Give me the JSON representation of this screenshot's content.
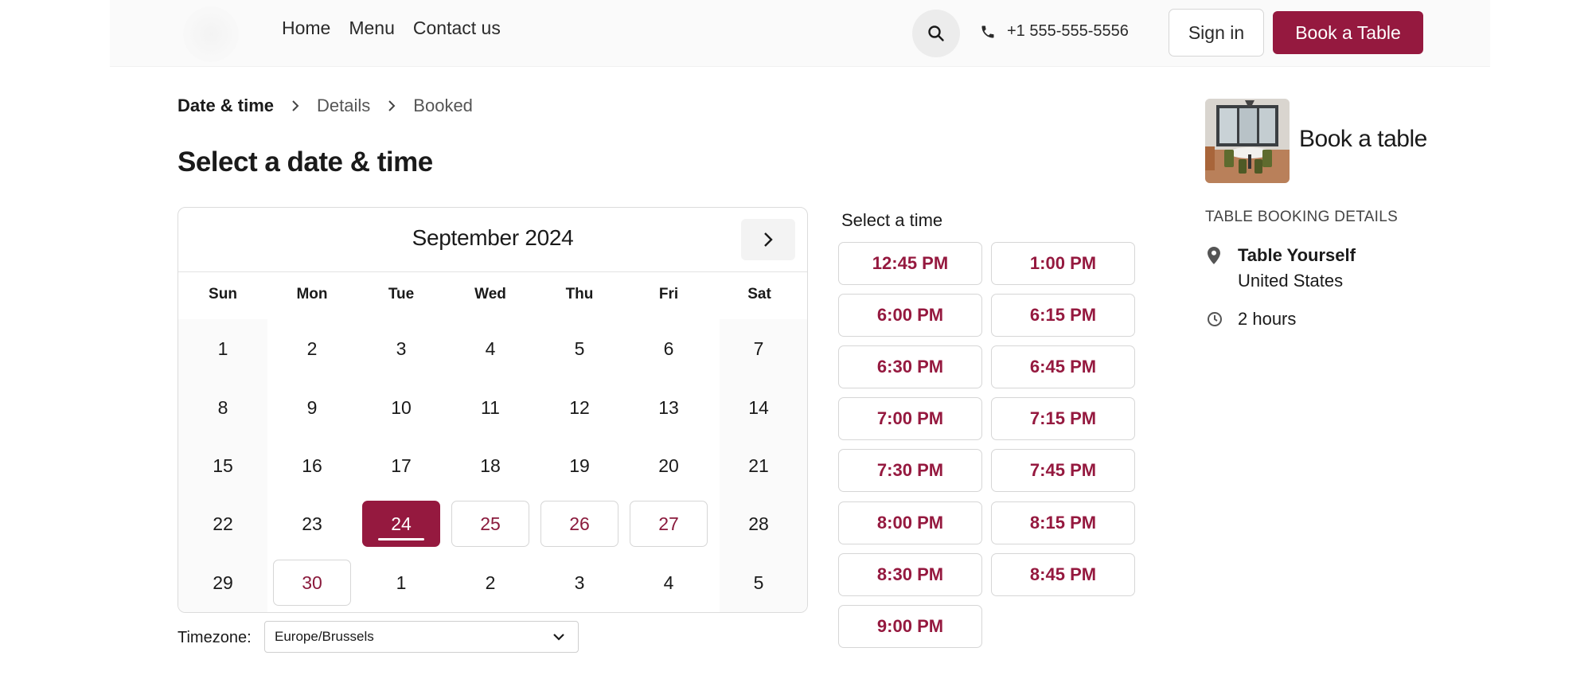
{
  "header": {
    "nav": [
      "Home",
      "Menu",
      "Contact us"
    ],
    "phone": "+1 555-555-5556",
    "sign_in": "Sign in",
    "book_table": "Book a Table"
  },
  "breadcrumb": [
    "Date & time",
    "Details",
    "Booked"
  ],
  "page_title": "Select a date & time",
  "calendar": {
    "month": "September 2024",
    "weekdays": [
      "Sun",
      "Mon",
      "Tue",
      "Wed",
      "Thu",
      "Fri",
      "Sat"
    ],
    "weeks": [
      [
        "1",
        "2",
        "3",
        "4",
        "5",
        "6",
        "7"
      ],
      [
        "8",
        "9",
        "10",
        "11",
        "12",
        "13",
        "14"
      ],
      [
        "15",
        "16",
        "17",
        "18",
        "19",
        "20",
        "21"
      ],
      [
        "22",
        "23",
        "24",
        "25",
        "26",
        "27",
        "28"
      ],
      [
        "29",
        "30",
        "1",
        "2",
        "3",
        "4",
        "5"
      ]
    ],
    "selected_day": "24",
    "available_days": [
      "25",
      "26",
      "27",
      "30"
    ]
  },
  "timezone": {
    "label": "Timezone:",
    "value": "Europe/Brussels"
  },
  "times": {
    "title": "Select a time",
    "slots": [
      "12:45 PM",
      "1:00 PM",
      "6:00 PM",
      "6:15 PM",
      "6:30 PM",
      "6:45 PM",
      "7:00 PM",
      "7:15 PM",
      "7:30 PM",
      "7:45 PM",
      "8:00 PM",
      "8:15 PM",
      "8:30 PM",
      "8:45 PM",
      "9:00 PM"
    ]
  },
  "booking": {
    "title": "Book a table",
    "subtitle": "TABLE BOOKING DETAILS",
    "location_name": "Table Yourself",
    "location_country": "United States",
    "duration": "2 hours"
  },
  "colors": {
    "accent": "#95193f",
    "accent_text": "#8a1a3c"
  }
}
